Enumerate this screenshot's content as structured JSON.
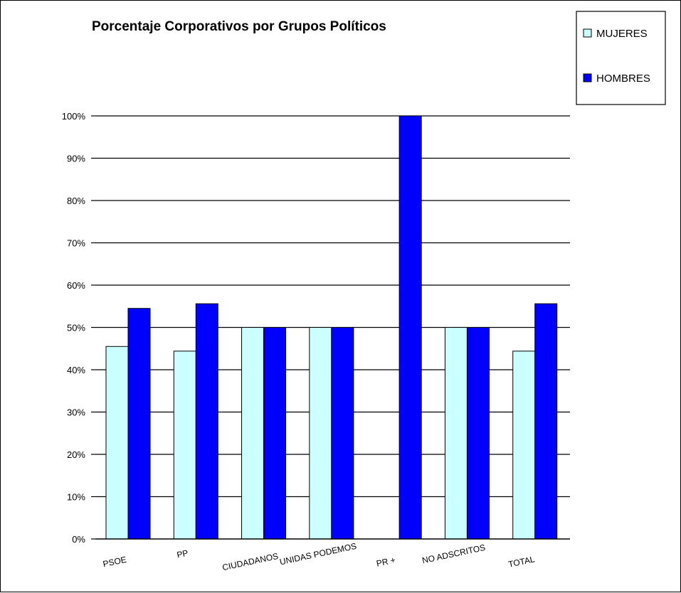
{
  "chart_data": {
    "type": "bar",
    "title": "Porcentaje Corporativos por Grupos Políticos",
    "xlabel": "",
    "ylabel": "",
    "ylim": [
      0,
      100
    ],
    "yticks": [
      "0%",
      "10%",
      "20%",
      "30%",
      "40%",
      "50%",
      "60%",
      "70%",
      "80%",
      "90%",
      "100%"
    ],
    "grid": true,
    "legend_position": "top-right",
    "categories": [
      "PSOE",
      "PP",
      "CIUDADANOS",
      "UNIDAS PODEMOS",
      "PR +",
      "NO ADSCRITOS",
      "TOTAL"
    ],
    "series": [
      {
        "name": "MUJERES",
        "color": "#ccffff",
        "values": [
          45.5,
          44.4,
          50,
          50,
          0,
          50,
          44.4
        ]
      },
      {
        "name": "HOMBRES",
        "color": "#0000ff",
        "values": [
          54.5,
          55.6,
          50,
          50,
          100,
          50,
          55.6
        ]
      }
    ]
  }
}
